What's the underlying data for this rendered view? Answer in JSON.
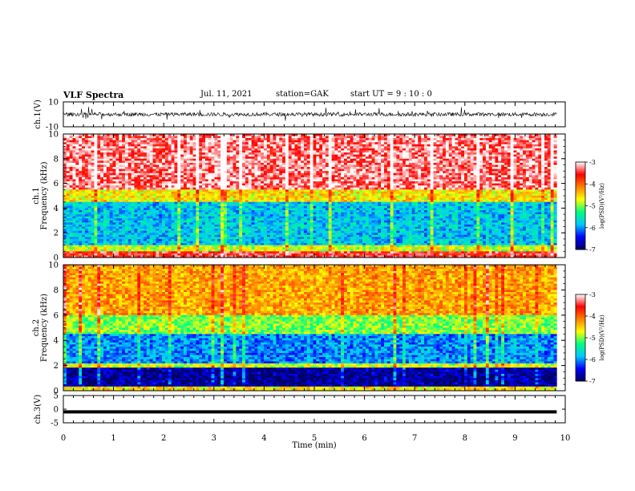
{
  "header": {
    "title": "VLF Spectra",
    "date": "Jul. 11, 2021",
    "station": "station=GAK",
    "start": "start UT = 9 : 10 : 0"
  },
  "chart_data": [
    {
      "type": "line",
      "panel": "ch1-waveform",
      "ylabel": "ch.1(V)",
      "ylim": [
        -10,
        10
      ],
      "yticks": [
        "10",
        "-10"
      ],
      "xlim": [
        0,
        10
      ],
      "series": [
        {
          "values_description_free": true,
          "mean": 0,
          "amplitude_typical": 3
        }
      ]
    },
    {
      "type": "heatmap",
      "panel": "ch1-spectrogram",
      "ylabel": "ch.1 Frequency (kHz)",
      "ylim": [
        0,
        10
      ],
      "yticks": [
        "0",
        "2",
        "4",
        "6",
        "8",
        "10"
      ],
      "xlim": [
        0,
        9.83
      ],
      "colorbar": {
        "label": "log(PSD)(V²/Hz)",
        "range": [
          -7,
          -3
        ],
        "ticks": [
          "-3",
          "-4",
          "-5",
          "-6",
          "-7"
        ],
        "colors": [
          "#000060",
          "#0000ff",
          "#00c8ff",
          "#00ff80",
          "#ffff00",
          "#ff8000",
          "#ff0000",
          "#ffffff"
        ]
      },
      "bands_khz_logpsd": [
        [
          0,
          0.5,
          -3.5
        ],
        [
          0.5,
          1.0,
          -4.8
        ],
        [
          1.0,
          4.5,
          -5.8
        ],
        [
          4.5,
          5.5,
          -4.6
        ],
        [
          5.5,
          10,
          -3.3
        ]
      ]
    },
    {
      "type": "heatmap",
      "panel": "ch2-spectrogram",
      "ylabel": "ch.2 Frequency (kHz)",
      "ylim": [
        0,
        10
      ],
      "yticks": [
        "0",
        "2",
        "4",
        "6",
        "8",
        "10"
      ],
      "xlim": [
        0,
        9.83
      ],
      "colorbar": {
        "label": "log(PSD)(V²/Hz)",
        "range": [
          -7,
          -3
        ],
        "ticks": [
          "-3",
          "-4",
          "-5",
          "-6",
          "-7"
        ],
        "colors": [
          "#000060",
          "#0000ff",
          "#00c8ff",
          "#00ff80",
          "#ffff00",
          "#ff8000",
          "#ff0000",
          "#ffffff"
        ]
      },
      "bands_khz_logpsd": [
        [
          0,
          0.4,
          -4.6
        ],
        [
          0.4,
          1.8,
          -6.8
        ],
        [
          1.8,
          2.2,
          -4.8
        ],
        [
          2.2,
          4.5,
          -6.0
        ],
        [
          4.5,
          6.0,
          -5.0
        ],
        [
          6.0,
          10,
          -4.3
        ]
      ]
    },
    {
      "type": "line",
      "panel": "ch3-waveform",
      "ylabel": "ch.3(V)",
      "ylim": [
        -5,
        5
      ],
      "yticks": [
        "5",
        "0",
        "-5"
      ],
      "xlim": [
        0,
        9.83
      ],
      "series": [
        {
          "constant": -1
        }
      ]
    }
  ],
  "xaxis": {
    "label": "Time (min)",
    "ticks": [
      "0",
      "1",
      "2",
      "3",
      "4",
      "5",
      "6",
      "7",
      "8",
      "9",
      "10"
    ]
  }
}
